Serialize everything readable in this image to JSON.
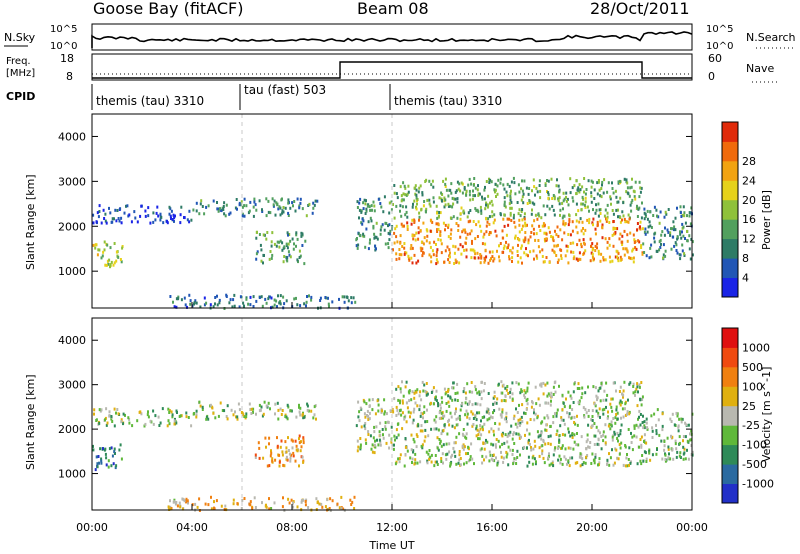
{
  "header": {
    "station": "Goose Bay (fitACF)",
    "beam": "Beam 08",
    "date": "28/Oct/2011"
  },
  "panels": {
    "noise": {
      "left_label": "N.Sky",
      "left_ticks": [
        "10^5",
        "10^0"
      ],
      "right_ticks": [
        "10^5",
        "10^0"
      ],
      "right_label": "N.Search"
    },
    "freq": {
      "left_label_1": "Freq.",
      "left_label_2": "[MHz]",
      "left_ticks": [
        "18",
        "8"
      ],
      "right_ticks": [
        "60",
        "0"
      ],
      "right_label": "Nave"
    },
    "cpid": {
      "label": "CPID",
      "segments": [
        {
          "name": "themis (tau) 3310",
          "start_hour": 0
        },
        {
          "name": "tau (fast) 503",
          "start_hour": 6
        },
        {
          "name": "themis (tau) 3310",
          "start_hour": 12
        }
      ]
    }
  },
  "chart_data": [
    {
      "type": "heatmap",
      "title": "Power",
      "ylabel": "Slant Range [km]",
      "yticks": [
        "1000",
        "2000",
        "3000",
        "4000"
      ],
      "xlim_hours": [
        0,
        24
      ],
      "ylim_km": [
        180,
        4500
      ],
      "colorbar": {
        "label": "Power [dB]",
        "ticks": [
          "4",
          "8",
          "12",
          "16",
          "20",
          "24",
          "28"
        ],
        "colors": [
          "#1a24e6",
          "#2156b5",
          "#2e7b66",
          "#52a05e",
          "#8fc13a",
          "#e6d21a",
          "#f2a311",
          "#f06a0c",
          "#e02a0a"
        ]
      },
      "regions": [
        {
          "t0": 0.0,
          "t1": 1.2,
          "r0": 1100,
          "r1": 1700,
          "level": 0.55
        },
        {
          "t0": 0.0,
          "t1": 4.0,
          "r0": 2100,
          "r1": 2500,
          "level": 0.1
        },
        {
          "t0": 4.0,
          "t1": 9.0,
          "r0": 2250,
          "r1": 2650,
          "level": 0.3
        },
        {
          "t0": 6.5,
          "t1": 8.5,
          "r0": 1200,
          "r1": 1900,
          "level": 0.35
        },
        {
          "t0": 3.0,
          "t1": 10.5,
          "r0": 200,
          "r1": 500,
          "level": 0.25
        },
        {
          "t0": 10.5,
          "t1": 12.0,
          "r0": 1500,
          "r1": 2700,
          "level": 0.3
        },
        {
          "t0": 12.0,
          "t1": 22.0,
          "r0": 2200,
          "r1": 3100,
          "level": 0.4
        },
        {
          "t0": 12.0,
          "t1": 22.0,
          "r0": 1200,
          "r1": 2200,
          "level": 0.75
        },
        {
          "t0": 22.0,
          "t1": 24.0,
          "r0": 1300,
          "r1": 2500,
          "level": 0.3
        }
      ]
    },
    {
      "type": "heatmap",
      "title": "Velocity",
      "ylabel": "Slant Range [km]",
      "yticks": [
        "1000",
        "2000",
        "3000",
        "4000"
      ],
      "xlim_hours": [
        0,
        24
      ],
      "ylim_km": [
        180,
        4500
      ],
      "colorbar": {
        "label": "Velocity [m s^-1]",
        "ticks": [
          "1000",
          "500",
          "100",
          "25",
          "-25",
          "-100",
          "-500",
          "-1000"
        ],
        "colors": [
          "#2230c8",
          "#2a6aa0",
          "#2e8a58",
          "#5fb83a",
          "#b8b8b0",
          "#e0b010",
          "#f08010",
          "#f04a10",
          "#e01010"
        ]
      },
      "regions": [
        {
          "t0": 0.0,
          "t1": 1.2,
          "r0": 1100,
          "r1": 1700,
          "level": 0.2
        },
        {
          "t0": 0.0,
          "t1": 4.0,
          "r0": 2100,
          "r1": 2500,
          "level": 0.45
        },
        {
          "t0": 4.0,
          "t1": 9.0,
          "r0": 2250,
          "r1": 2650,
          "level": 0.45
        },
        {
          "t0": 6.5,
          "t1": 8.5,
          "r0": 1200,
          "r1": 1900,
          "level": 0.65
        },
        {
          "t0": 3.0,
          "t1": 10.5,
          "r0": 200,
          "r1": 500,
          "level": 0.6
        },
        {
          "t0": 10.5,
          "t1": 12.0,
          "r0": 1500,
          "r1": 2700,
          "level": 0.45
        },
        {
          "t0": 12.0,
          "t1": 22.0,
          "r0": 2200,
          "r1": 3100,
          "level": 0.45
        },
        {
          "t0": 12.0,
          "t1": 22.0,
          "r0": 1200,
          "r1": 2200,
          "level": 0.45
        },
        {
          "t0": 22.0,
          "t1": 24.0,
          "r0": 1300,
          "r1": 2500,
          "level": 0.4
        }
      ]
    }
  ],
  "xaxis": {
    "label": "Time UT",
    "ticks": [
      "00:00",
      "04:00",
      "08:00",
      "12:00",
      "16:00",
      "20:00",
      "00:00"
    ]
  }
}
